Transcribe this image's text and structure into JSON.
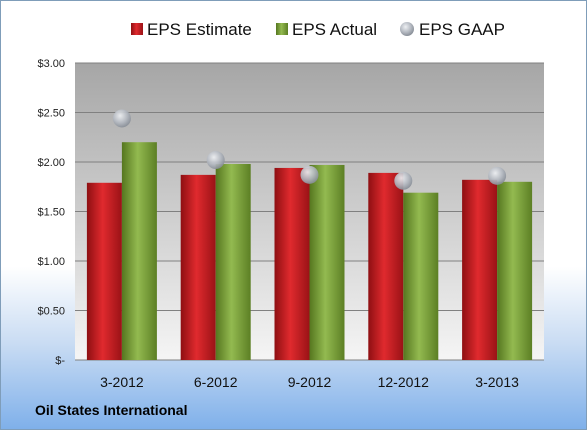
{
  "company": "Oil States International",
  "colors": {
    "estimate": "#c0161a",
    "actual": "#7aa23a",
    "gaap": "#a8adb5",
    "plot_bg_top": "#a8a8a8",
    "plot_bg_bottom": "#f4f4f4",
    "grid": "#808080"
  },
  "chart_data": {
    "type": "bar",
    "categories": [
      "3-2012",
      "6-2012",
      "9-2012",
      "12-2012",
      "3-2013"
    ],
    "series": [
      {
        "name": "EPS Estimate",
        "values": [
          1.79,
          1.87,
          1.94,
          1.89,
          1.82
        ]
      },
      {
        "name": "EPS Actual",
        "values": [
          2.2,
          1.98,
          1.97,
          1.69,
          1.8
        ]
      },
      {
        "name": "EPS GAAP",
        "values": [
          2.44,
          2.02,
          1.87,
          1.81,
          1.86
        ],
        "marker": "circle"
      }
    ],
    "yticks": [
      "$-",
      "$0.50",
      "$1.00",
      "$1.50",
      "$2.00",
      "$2.50",
      "$3.00"
    ],
    "ylim": [
      0,
      3.0
    ],
    "legend": "top",
    "grid": true
  }
}
